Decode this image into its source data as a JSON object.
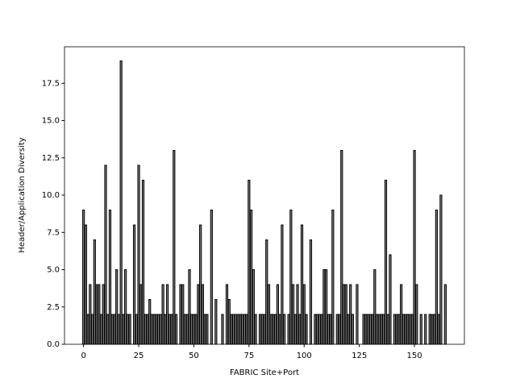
{
  "chart_data": {
    "type": "bar",
    "xlabel": "FABRIC Site+Port",
    "ylabel": "Header/Application Diversity",
    "x": [
      0,
      1,
      2,
      3,
      4,
      5,
      6,
      7,
      8,
      9,
      10,
      11,
      12,
      13,
      14,
      15,
      16,
      17,
      18,
      19,
      20,
      21,
      22,
      23,
      24,
      25,
      26,
      27,
      28,
      29,
      30,
      31,
      32,
      33,
      34,
      35,
      36,
      37,
      38,
      39,
      40,
      41,
      42,
      43,
      44,
      45,
      46,
      47,
      48,
      49,
      50,
      51,
      52,
      53,
      54,
      55,
      56,
      57,
      58,
      59,
      60,
      61,
      62,
      63,
      64,
      65,
      66,
      67,
      68,
      69,
      70,
      71,
      72,
      73,
      74,
      75,
      76,
      77,
      78,
      79,
      80,
      81,
      82,
      83,
      84,
      85,
      86,
      87,
      88,
      89,
      90,
      91,
      92,
      93,
      94,
      95,
      96,
      97,
      98,
      99,
      100,
      101,
      102,
      103,
      104,
      105,
      106,
      107,
      108,
      109,
      110,
      111,
      112,
      113,
      114,
      115,
      116,
      117,
      118,
      119,
      120,
      121,
      122,
      123,
      124,
      125,
      126,
      127,
      128,
      129,
      130,
      131,
      132,
      133,
      134,
      135,
      136,
      137,
      138,
      139,
      140,
      141,
      142,
      143,
      144,
      145,
      146,
      147,
      148,
      149,
      150,
      151,
      152,
      153,
      154,
      155,
      156,
      157,
      158,
      159,
      160,
      161,
      162,
      163,
      164
    ],
    "values": [
      9,
      8,
      2,
      4,
      2,
      7,
      4,
      4,
      2,
      4,
      12,
      2,
      9,
      2,
      2,
      5,
      2,
      19,
      2,
      5,
      2,
      2,
      0,
      8,
      2,
      12,
      4,
      11,
      2,
      2,
      3,
      2,
      2,
      2,
      2,
      2,
      4,
      2,
      4,
      2,
      2,
      13,
      2,
      0,
      4,
      4,
      2,
      2,
      5,
      2,
      2,
      2,
      4,
      8,
      4,
      2,
      2,
      0,
      9,
      0,
      3,
      0,
      0,
      2,
      0,
      4,
      3,
      2,
      2,
      2,
      2,
      2,
      2,
      2,
      2,
      11,
      9,
      5,
      2,
      0,
      2,
      2,
      2,
      7,
      4,
      2,
      2,
      2,
      4,
      2,
      8,
      2,
      0,
      2,
      9,
      4,
      2,
      4,
      2,
      8,
      4,
      2,
      0,
      7,
      0,
      2,
      2,
      2,
      2,
      5,
      5,
      2,
      2,
      9,
      0,
      2,
      2,
      13,
      4,
      4,
      2,
      4,
      2,
      0,
      4,
      0,
      0,
      2,
      2,
      2,
      2,
      2,
      5,
      2,
      2,
      2,
      2,
      11,
      2,
      6,
      0,
      2,
      2,
      2,
      4,
      2,
      2,
      2,
      2,
      2,
      13,
      4,
      0,
      2,
      0,
      2,
      0,
      2,
      2,
      2,
      9,
      2,
      10,
      0,
      4
    ],
    "color": "#808080",
    "edgecolor": "#000000",
    "xlim": [
      -8.64,
      172.64
    ],
    "xticks": [
      0,
      25,
      50,
      75,
      100,
      125,
      150
    ],
    "ylim": [
      0,
      19.95
    ],
    "yticks": [
      {
        "value": 0,
        "label": "0.0"
      },
      2.5,
      {
        "value": 5,
        "label": "5.0"
      },
      7.5,
      {
        "value": 10,
        "label": "10.0"
      },
      12.5,
      {
        "value": 15,
        "label": "15.0"
      },
      17.5
    ]
  }
}
